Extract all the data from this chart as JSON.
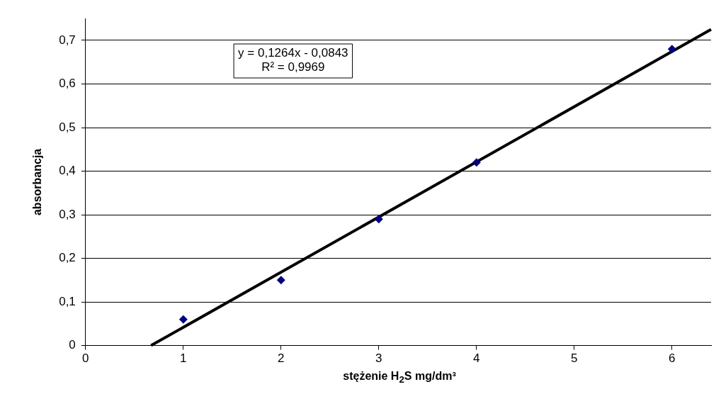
{
  "chart_data": {
    "type": "scatter",
    "xlabel": "stężenie H$_{2}$S mg/dm³",
    "ylabel": "absorbancja",
    "annotations": [
      "y = 0,1264x - 0,0843",
      "R² = 0,9969"
    ],
    "xlim": [
      0,
      6.4
    ],
    "ylim": [
      0,
      0.75
    ],
    "xticks": [
      0,
      1,
      2,
      3,
      4,
      5,
      6
    ],
    "yticks": [
      0,
      {
        "value": 0.1,
        "label": "0,1"
      },
      {
        "value": 0.2,
        "label": "0,2"
      },
      {
        "value": 0.3,
        "label": "0,3"
      },
      {
        "value": 0.4,
        "label": "0,4"
      },
      {
        "value": 0.5,
        "label": "0,5"
      },
      {
        "value": 0.6,
        "label": "0,6"
      },
      {
        "value": 0.7,
        "label": "0,7"
      }
    ],
    "grid": "y",
    "series": [
      {
        "type": "scatter",
        "color": "#000080",
        "marker": "diamond",
        "x": [
          1,
          2,
          3,
          4,
          6
        ],
        "values": [
          0.06,
          0.15,
          0.29,
          0.42,
          0.68
        ]
      },
      {
        "type": "line",
        "marker": "none",
        "color": "#000000",
        "x": [
          0.67,
          6.4
        ],
        "values": [
          0.0,
          0.725
        ]
      }
    ]
  }
}
